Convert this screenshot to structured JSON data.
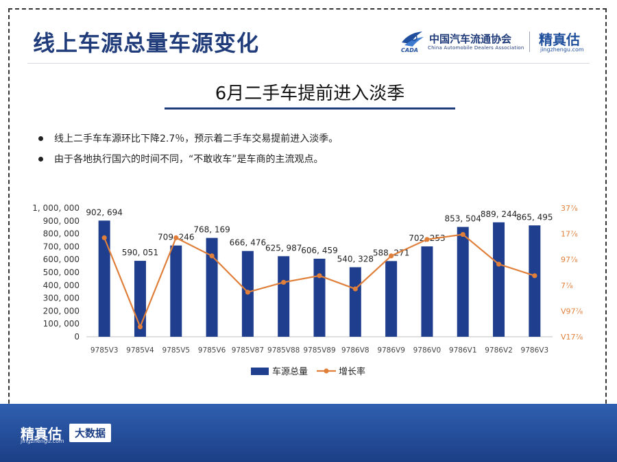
{
  "header": {
    "title": "线上车源总量车源变化",
    "assoc_logo_cn": "中国汽车流通协会",
    "assoc_logo_en": "China Automobile Dealers Association",
    "assoc_logo_mark": "CADA",
    "brand_name": "精真估",
    "brand_url": "jingzhengu.com"
  },
  "subtitle": "6月二手车提前进入淡季",
  "bullets": [
    "线上二手车车源环比下降2.7％，预示着二手车交易提前进入淡季。",
    "由于各地执行国六的时间不同，“不敢收车”是车商的主流观点。"
  ],
  "footer": {
    "brand": "精真估",
    "url": "jingzhengu.com",
    "badge": "大数据"
  },
  "colors": {
    "bar": "#1f3e8e",
    "line": "#e07f3a",
    "title": "#1f3b7a"
  },
  "chart_data": {
    "type": "bar",
    "categories": [
      "9785V3",
      "9785V4",
      "9785V5",
      "9785V6",
      "9785V87",
      "9785V88",
      "9785V89",
      "9786V8",
      "9786V9",
      "9786V0",
      "9786V1",
      "9786V2",
      "9786V3"
    ],
    "ylim": [
      0,
      1000000
    ],
    "yticks": [
      "0",
      "100, 000",
      "200, 000",
      "300, 000",
      "400, 000",
      "500, 000",
      "600, 000",
      "700, 000",
      "800, 000",
      "900, 000",
      "1, 000, 000"
    ],
    "y2ticks": [
      "V17⅞",
      "V97⅞",
      "7⅞",
      "97⅞",
      "17⅞",
      "37⅞"
    ],
    "series": [
      {
        "name": "车源总量",
        "kind": "bar",
        "values": [
          902694,
          590051,
          709246,
          768169,
          666476,
          625987,
          606459,
          540328,
          588271,
          702253,
          853504,
          889244,
          865495
        ],
        "labels": [
          "902, 694",
          "590, 051",
          "709, 246",
          "768, 169",
          "666, 476",
          "625, 987",
          "606, 459",
          "540, 328",
          "588, 271",
          "702, 253",
          "853, 504",
          "889, 244",
          "865, 495"
        ]
      },
      {
        "name": "增长率",
        "kind": "line",
        "axis": "right",
        "y2lim": [
          -0.4,
          0.38
        ],
        "values": [
          0.2,
          -0.34,
          0.2,
          0.09,
          -0.13,
          -0.07,
          -0.03,
          -0.11,
          0.09,
          0.19,
          0.22,
          0.04,
          -0.03
        ]
      }
    ],
    "legend_position": "bottom"
  }
}
